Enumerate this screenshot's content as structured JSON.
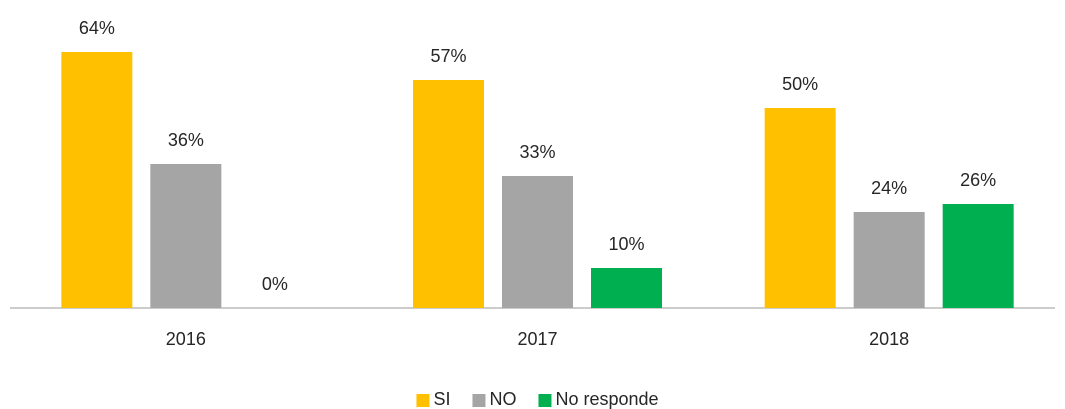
{
  "chart_data": {
    "type": "bar",
    "categories": [
      "2016",
      "2017",
      "2018"
    ],
    "series": [
      {
        "name": "SI",
        "color": "#ffc000",
        "values": [
          64,
          57,
          50
        ],
        "value_labels": [
          "64%",
          "57%",
          "50%"
        ]
      },
      {
        "name": "NO",
        "color": "#a5a5a5",
        "values": [
          36,
          33,
          24
        ],
        "value_labels": [
          "36%",
          "33%",
          "24%"
        ]
      },
      {
        "name": "No responde",
        "color": "#00b050",
        "values": [
          0,
          10,
          26
        ],
        "value_labels": [
          "0%",
          "10%",
          "26%"
        ]
      }
    ],
    "legend": "bottom"
  }
}
